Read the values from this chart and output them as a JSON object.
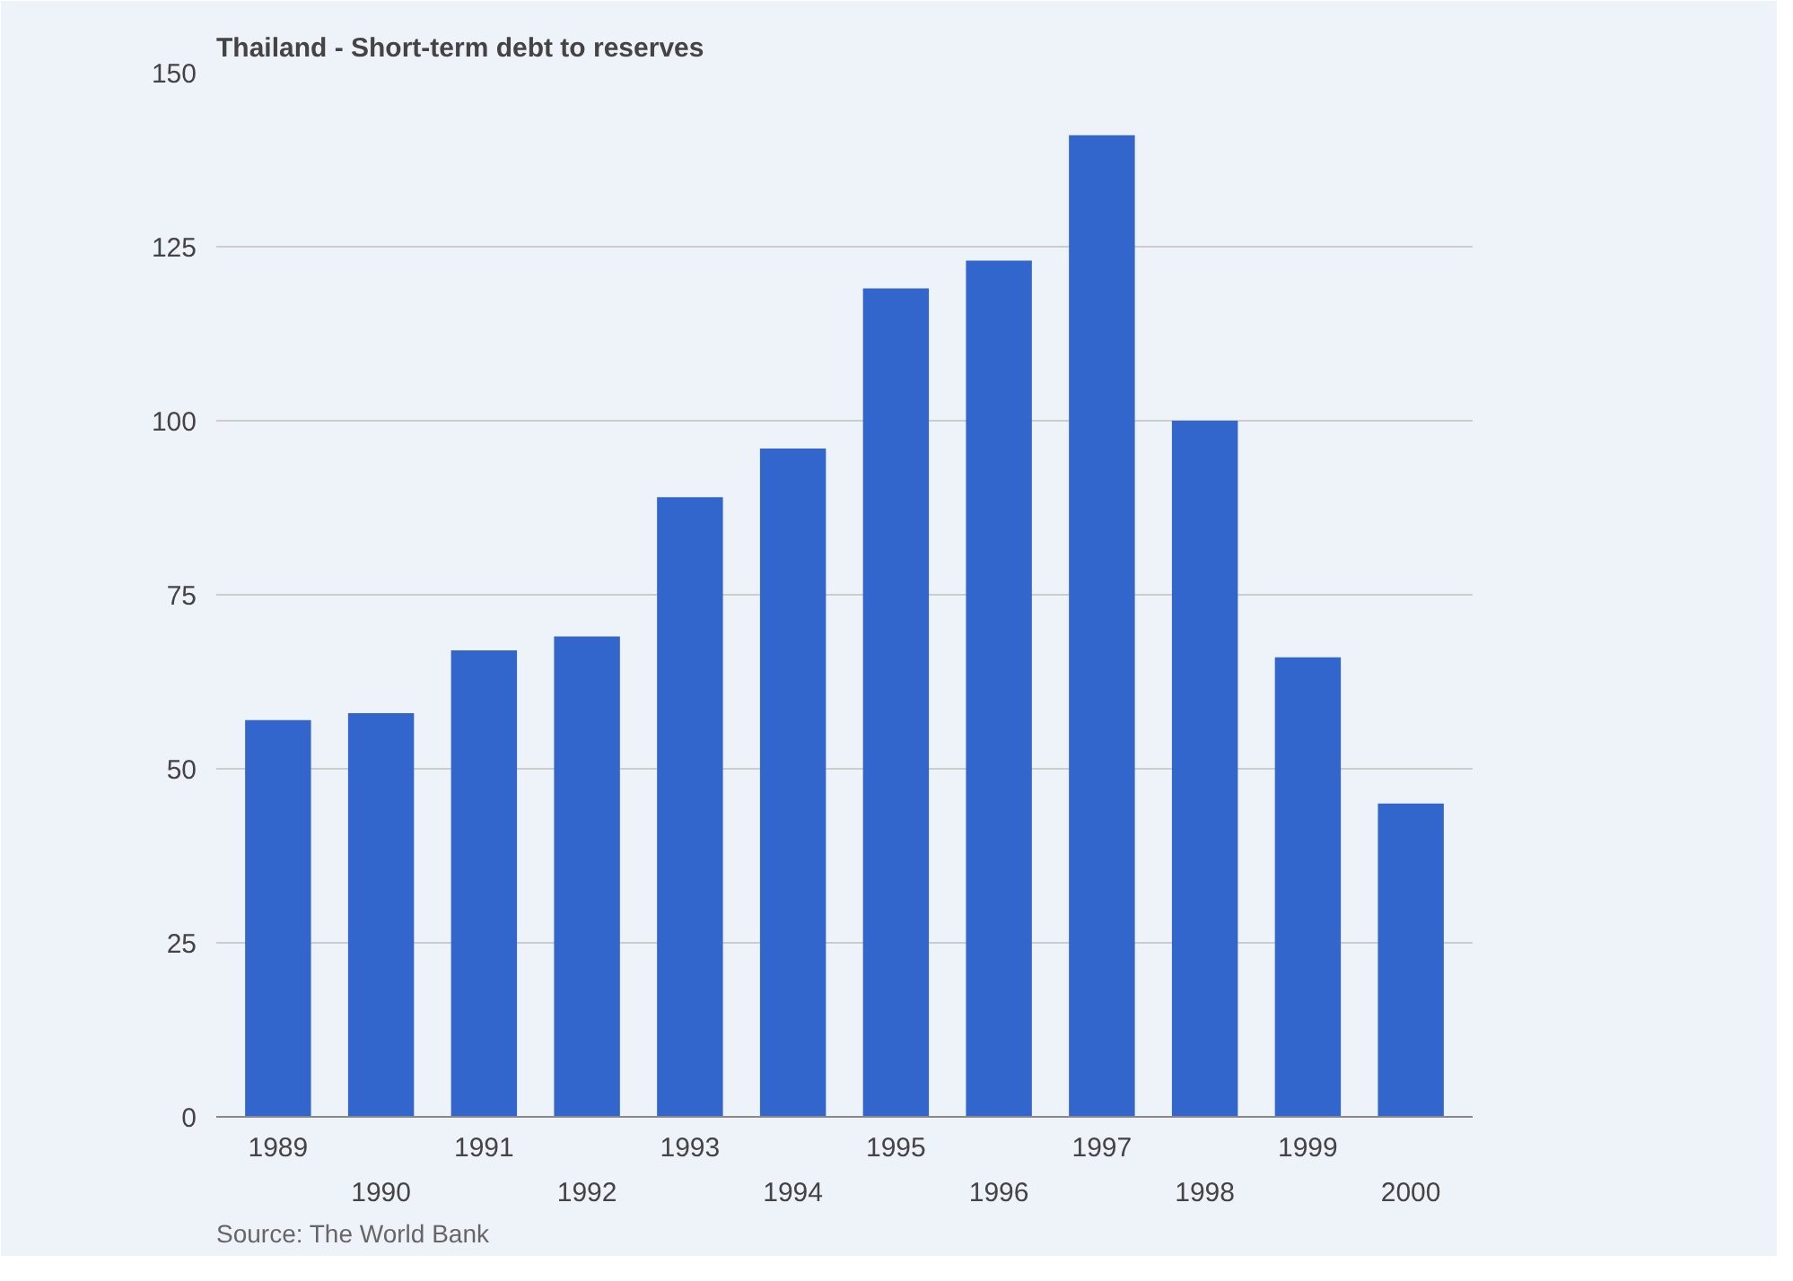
{
  "chart_data": {
    "type": "bar",
    "title": "Thailand - Short-term debt to reserves",
    "categories": [
      "1989",
      "1990",
      "1991",
      "1992",
      "1993",
      "1994",
      "1995",
      "1996",
      "1997",
      "1998",
      "1999",
      "2000"
    ],
    "values": [
      57,
      58,
      67,
      69,
      89,
      96,
      119,
      123,
      141,
      100,
      66,
      45
    ],
    "color": "#3366cc",
    "ylim": [
      0,
      150
    ],
    "yticks": [
      0,
      25,
      50,
      75,
      100,
      125,
      150
    ],
    "grid": "y",
    "annotations": [
      "Source: The World Bank"
    ]
  }
}
